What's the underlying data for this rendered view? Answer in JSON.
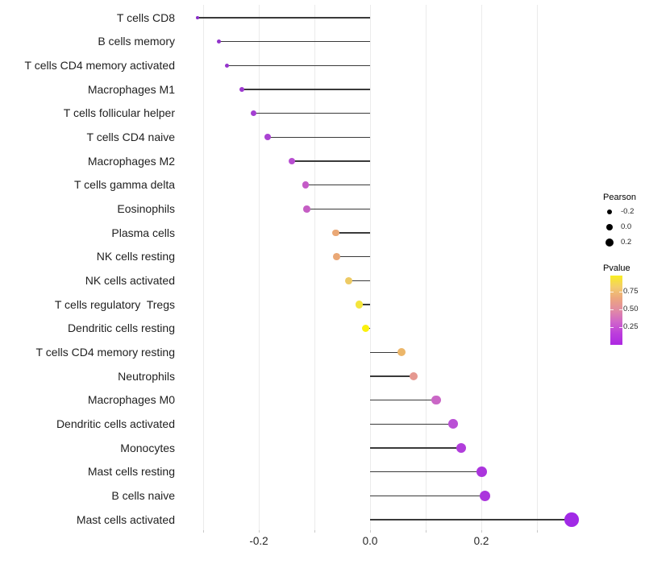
{
  "chart_data": {
    "type": "lollipop",
    "title": "",
    "xlabel": "",
    "ylabel": "",
    "x_axis": {
      "tick_labels": [
        "-0.2",
        "0.0",
        "0.2"
      ],
      "tick_values": [
        -0.2,
        0.0,
        0.2
      ],
      "grid_values": [
        -0.3,
        -0.2,
        -0.1,
        0.0,
        0.1,
        0.2,
        0.3
      ],
      "xlim": [
        -0.345,
        0.395
      ]
    },
    "rows": [
      {
        "label": "T cells CD8",
        "pearson": -0.31,
        "color": "#8a2ec8"
      },
      {
        "label": "B cells memory",
        "pearson": -0.272,
        "color": "#9133cb"
      },
      {
        "label": "T cells CD4 memory activated",
        "pearson": -0.257,
        "color": "#9535cd"
      },
      {
        "label": "Macrophages M1",
        "pearson": -0.23,
        "color": "#9d39cf"
      },
      {
        "label": "T cells follicular helper",
        "pearson": -0.209,
        "color": "#a43ed2"
      },
      {
        "label": "T cells CD4 naive",
        "pearson": -0.184,
        "color": "#aa43d3"
      },
      {
        "label": "Macrophages M2",
        "pearson": -0.141,
        "color": "#b84ed1"
      },
      {
        "label": "T cells gamma delta",
        "pearson": -0.116,
        "color": "#c45bc7"
      },
      {
        "label": "Eosinophils",
        "pearson": -0.114,
        "color": "#c55ec4"
      },
      {
        "label": "Plasma cells",
        "pearson": -0.062,
        "color": "#eaa876"
      },
      {
        "label": "NK cells resting",
        "pearson": -0.06,
        "color": "#eaa876"
      },
      {
        "label": "NK cells activated",
        "pearson": -0.038,
        "color": "#edca64"
      },
      {
        "label": "T cells regulatory  Tregs",
        "pearson": -0.019,
        "color": "#f4e53c"
      },
      {
        "label": "Dendritic cells resting",
        "pearson": -0.008,
        "color": "#fbf10d"
      },
      {
        "label": "T cells CD4 memory resting",
        "pearson": 0.057,
        "color": "#ecb669"
      },
      {
        "label": "Neutrophils",
        "pearson": 0.078,
        "color": "#e59890"
      },
      {
        "label": "Macrophages M0",
        "pearson": 0.119,
        "color": "#ca67c6"
      },
      {
        "label": "Dendritic cells activated",
        "pearson": 0.149,
        "color": "#ba50d5"
      },
      {
        "label": "Monocytes",
        "pearson": 0.164,
        "color": "#b13ddb"
      },
      {
        "label": "Mast cells resting",
        "pearson": 0.201,
        "color": "#ab35dd"
      },
      {
        "label": "B cells naive",
        "pearson": 0.207,
        "color": "#ab35dd"
      },
      {
        "label": "Mast cells activated",
        "pearson": 0.362,
        "color": "#a12ae6"
      }
    ],
    "legend": {
      "size": {
        "title": "Pearson",
        "entries": [
          {
            "label": "-0.2",
            "value": -0.2
          },
          {
            "label": "0.0",
            "value": 0.0
          },
          {
            "label": "0.2",
            "value": 0.2
          }
        ]
      },
      "color": {
        "title": "Pvalue",
        "tick_labels": [
          "0.75",
          "0.50",
          "0.25"
        ],
        "tick_values": [
          0.75,
          0.5,
          0.25
        ],
        "gradient_top_to_bottom": [
          "#f8ed21",
          "#f3cd6c",
          "#eca57f",
          "#e18ba4",
          "#d065c9",
          "#bc3edc",
          "#ae28e2"
        ]
      }
    },
    "layout_hints": {
      "grid": "vertical light-gray lines every 0.1",
      "legend_position": "right"
    }
  },
  "colors": {
    "segment": "#3a3a3a",
    "gridline": "#ebebeb",
    "tick": "#c9c9c9",
    "axis_text": "#262626",
    "background": "#ffffff",
    "legend_dot": "#000000"
  }
}
